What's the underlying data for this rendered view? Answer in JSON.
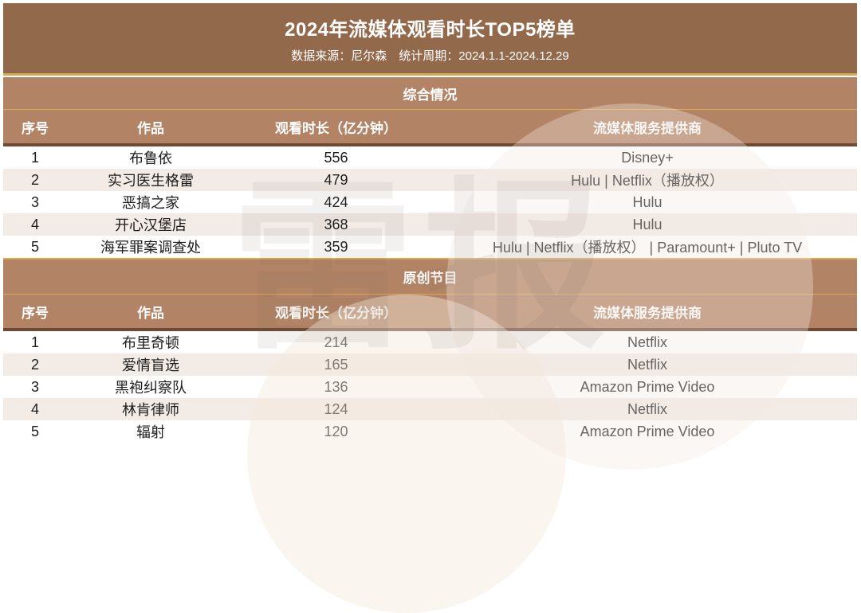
{
  "header": {
    "title": "2024年流媒体观看时长TOP5榜单",
    "subtitle": "数据来源：尼尔森　统计周期：2024.1.1-2024.12.29"
  },
  "watermark": {
    "text": "雷报"
  },
  "colors": {
    "header_brown": "#93694C",
    "band_brown": "#B28364",
    "gold_line": "#D8A855",
    "dark_separator": "#6F4A33",
    "alt_row": "#F3ECE6",
    "text": "#1C1C1C"
  },
  "chart_data": [
    {
      "type": "table",
      "section_title": "综合情况",
      "columns": [
        "序号",
        "作品",
        "观看时长（亿分钟）",
        "流媒体服务提供商"
      ],
      "rows": [
        [
          "1",
          "布鲁依",
          "556",
          "Disney+"
        ],
        [
          "2",
          "实习医生格雷",
          "479",
          "Hulu | Netflix（播放权）"
        ],
        [
          "3",
          "恶搞之家",
          "424",
          "Hulu"
        ],
        [
          "4",
          "开心汉堡店",
          "368",
          "Hulu"
        ],
        [
          "5",
          "海军罪案调查处",
          "359",
          "Hulu | Netflix（播放权） | Paramount+ | Pluto TV"
        ]
      ]
    },
    {
      "type": "table",
      "section_title": "原创节目",
      "columns": [
        "序号",
        "作品",
        "观看时长（亿分钟）",
        "流媒体服务提供商"
      ],
      "rows": [
        [
          "1",
          "布里奇顿",
          "214",
          "Netflix"
        ],
        [
          "2",
          "爱情盲选",
          "165",
          "Netflix"
        ],
        [
          "3",
          "黑袍纠察队",
          "136",
          "Amazon Prime Video"
        ],
        [
          "4",
          "林肯律师",
          "124",
          "Netflix"
        ],
        [
          "5",
          "辐射",
          "120",
          "Amazon Prime Video"
        ]
      ]
    }
  ]
}
